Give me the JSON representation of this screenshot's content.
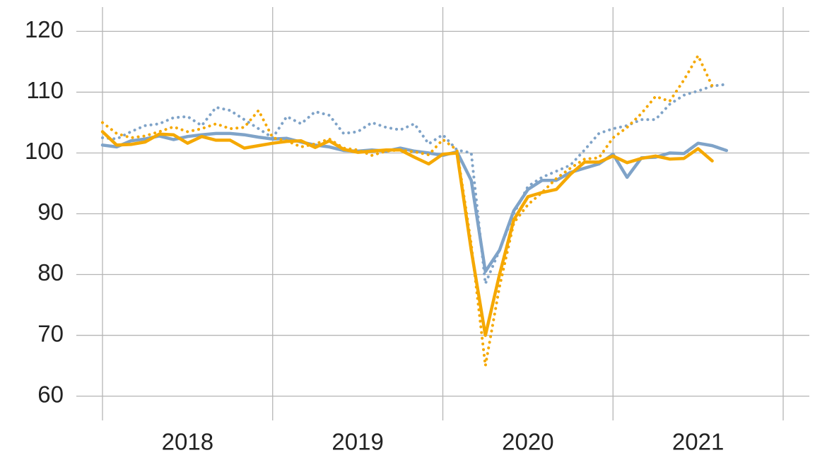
{
  "chart_data": {
    "type": "line",
    "x": [
      2018,
      2018.083,
      2018.167,
      2018.25,
      2018.333,
      2018.417,
      2018.5,
      2018.583,
      2018.667,
      2018.75,
      2018.833,
      2018.917,
      2019,
      2019.083,
      2019.167,
      2019.25,
      2019.333,
      2019.417,
      2019.5,
      2019.583,
      2019.667,
      2019.75,
      2019.833,
      2019.917,
      2020,
      2020.083,
      2020.167,
      2020.25,
      2020.333,
      2020.417,
      2020.5,
      2020.583,
      2020.667,
      2020.75,
      2020.833,
      2020.917,
      2021,
      2021.083,
      2021.167,
      2021.25,
      2021.333,
      2021.417,
      2021.5,
      2021.583,
      2021.667
    ],
    "series": [
      {
        "color": "#7fa3c8",
        "dash": "solid",
        "values": [
          101.3,
          101.0,
          102.0,
          102.3,
          102.8,
          102.2,
          102.7,
          103.0,
          103.2,
          103.2,
          103.0,
          102.6,
          102.3,
          102.4,
          101.8,
          101.3,
          101.0,
          100.4,
          100.3,
          100.5,
          100.3,
          100.8,
          100.3,
          100.0,
          99.6,
          100.2,
          95.5,
          80.5,
          84.0,
          90.5,
          94.0,
          95.5,
          95.5,
          96.8,
          97.5,
          98.2,
          99.8,
          96.0,
          99.2,
          99.3,
          100.0,
          99.9,
          101.6,
          101.2,
          100.4
        ]
      },
      {
        "color": "#7fa3c8",
        "dash": "dotted",
        "values": [
          102.5,
          102.3,
          103.5,
          104.5,
          104.8,
          105.8,
          106.0,
          104.5,
          107.5,
          107.0,
          105.5,
          104.0,
          102.5,
          106.0,
          104.8,
          106.8,
          106.2,
          103.2,
          103.5,
          105.0,
          104.2,
          103.8,
          104.8,
          101.5,
          103.0,
          100.5,
          100.0,
          78.5,
          84.0,
          90.0,
          94.5,
          96.0,
          97.0,
          98.0,
          100.5,
          103.2,
          104.0,
          104.5,
          105.5,
          105.5,
          108.0,
          109.5,
          110.2,
          111.0,
          111.3
        ]
      },
      {
        "color": "#f5a800",
        "dash": "solid",
        "values": [
          103.5,
          101.3,
          101.4,
          101.8,
          103.1,
          103.0,
          101.6,
          102.7,
          102.1,
          102.1,
          100.8,
          101.2,
          101.6,
          101.9,
          102.0,
          100.9,
          102.0,
          100.6,
          100.1,
          100.3,
          100.5,
          100.5,
          99.3,
          98.2,
          99.8,
          100.0,
          84.0,
          70.0,
          80.0,
          89.0,
          92.8,
          93.5,
          94.0,
          96.5,
          98.5,
          98.5,
          99.5,
          98.4,
          99.1,
          99.5,
          99.0,
          99.1,
          100.7,
          98.7,
          null
        ]
      },
      {
        "color": "#f5a800",
        "dash": "dotted",
        "values": [
          105.0,
          103.2,
          102.5,
          102.8,
          103.5,
          104.3,
          103.5,
          104.0,
          104.8,
          104.0,
          104.2,
          107.0,
          102.5,
          102.0,
          101.0,
          101.5,
          102.3,
          100.8,
          100.5,
          99.6,
          100.3,
          100.5,
          100.2,
          99.7,
          102.2,
          100.5,
          85.0,
          65.0,
          78.0,
          88.5,
          91.5,
          93.5,
          95.8,
          97.5,
          99.0,
          99.2,
          102.5,
          104.2,
          106.5,
          109.3,
          108.5,
          112.0,
          116.0,
          111.0,
          null
        ]
      }
    ],
    "xlim": [
      2018,
      2022
    ],
    "xgrid": [
      2018,
      2019,
      2020,
      2021,
      2022
    ],
    "xticks": [
      {
        "value": 2018.5,
        "label": "2018"
      },
      {
        "value": 2019.5,
        "label": "2019"
      },
      {
        "value": 2020.5,
        "label": "2020"
      },
      {
        "value": 2021.5,
        "label": "2021"
      }
    ],
    "ylim": [
      56,
      124
    ],
    "yticks": [
      60,
      70,
      80,
      90,
      100,
      110,
      120
    ],
    "grid": true
  }
}
